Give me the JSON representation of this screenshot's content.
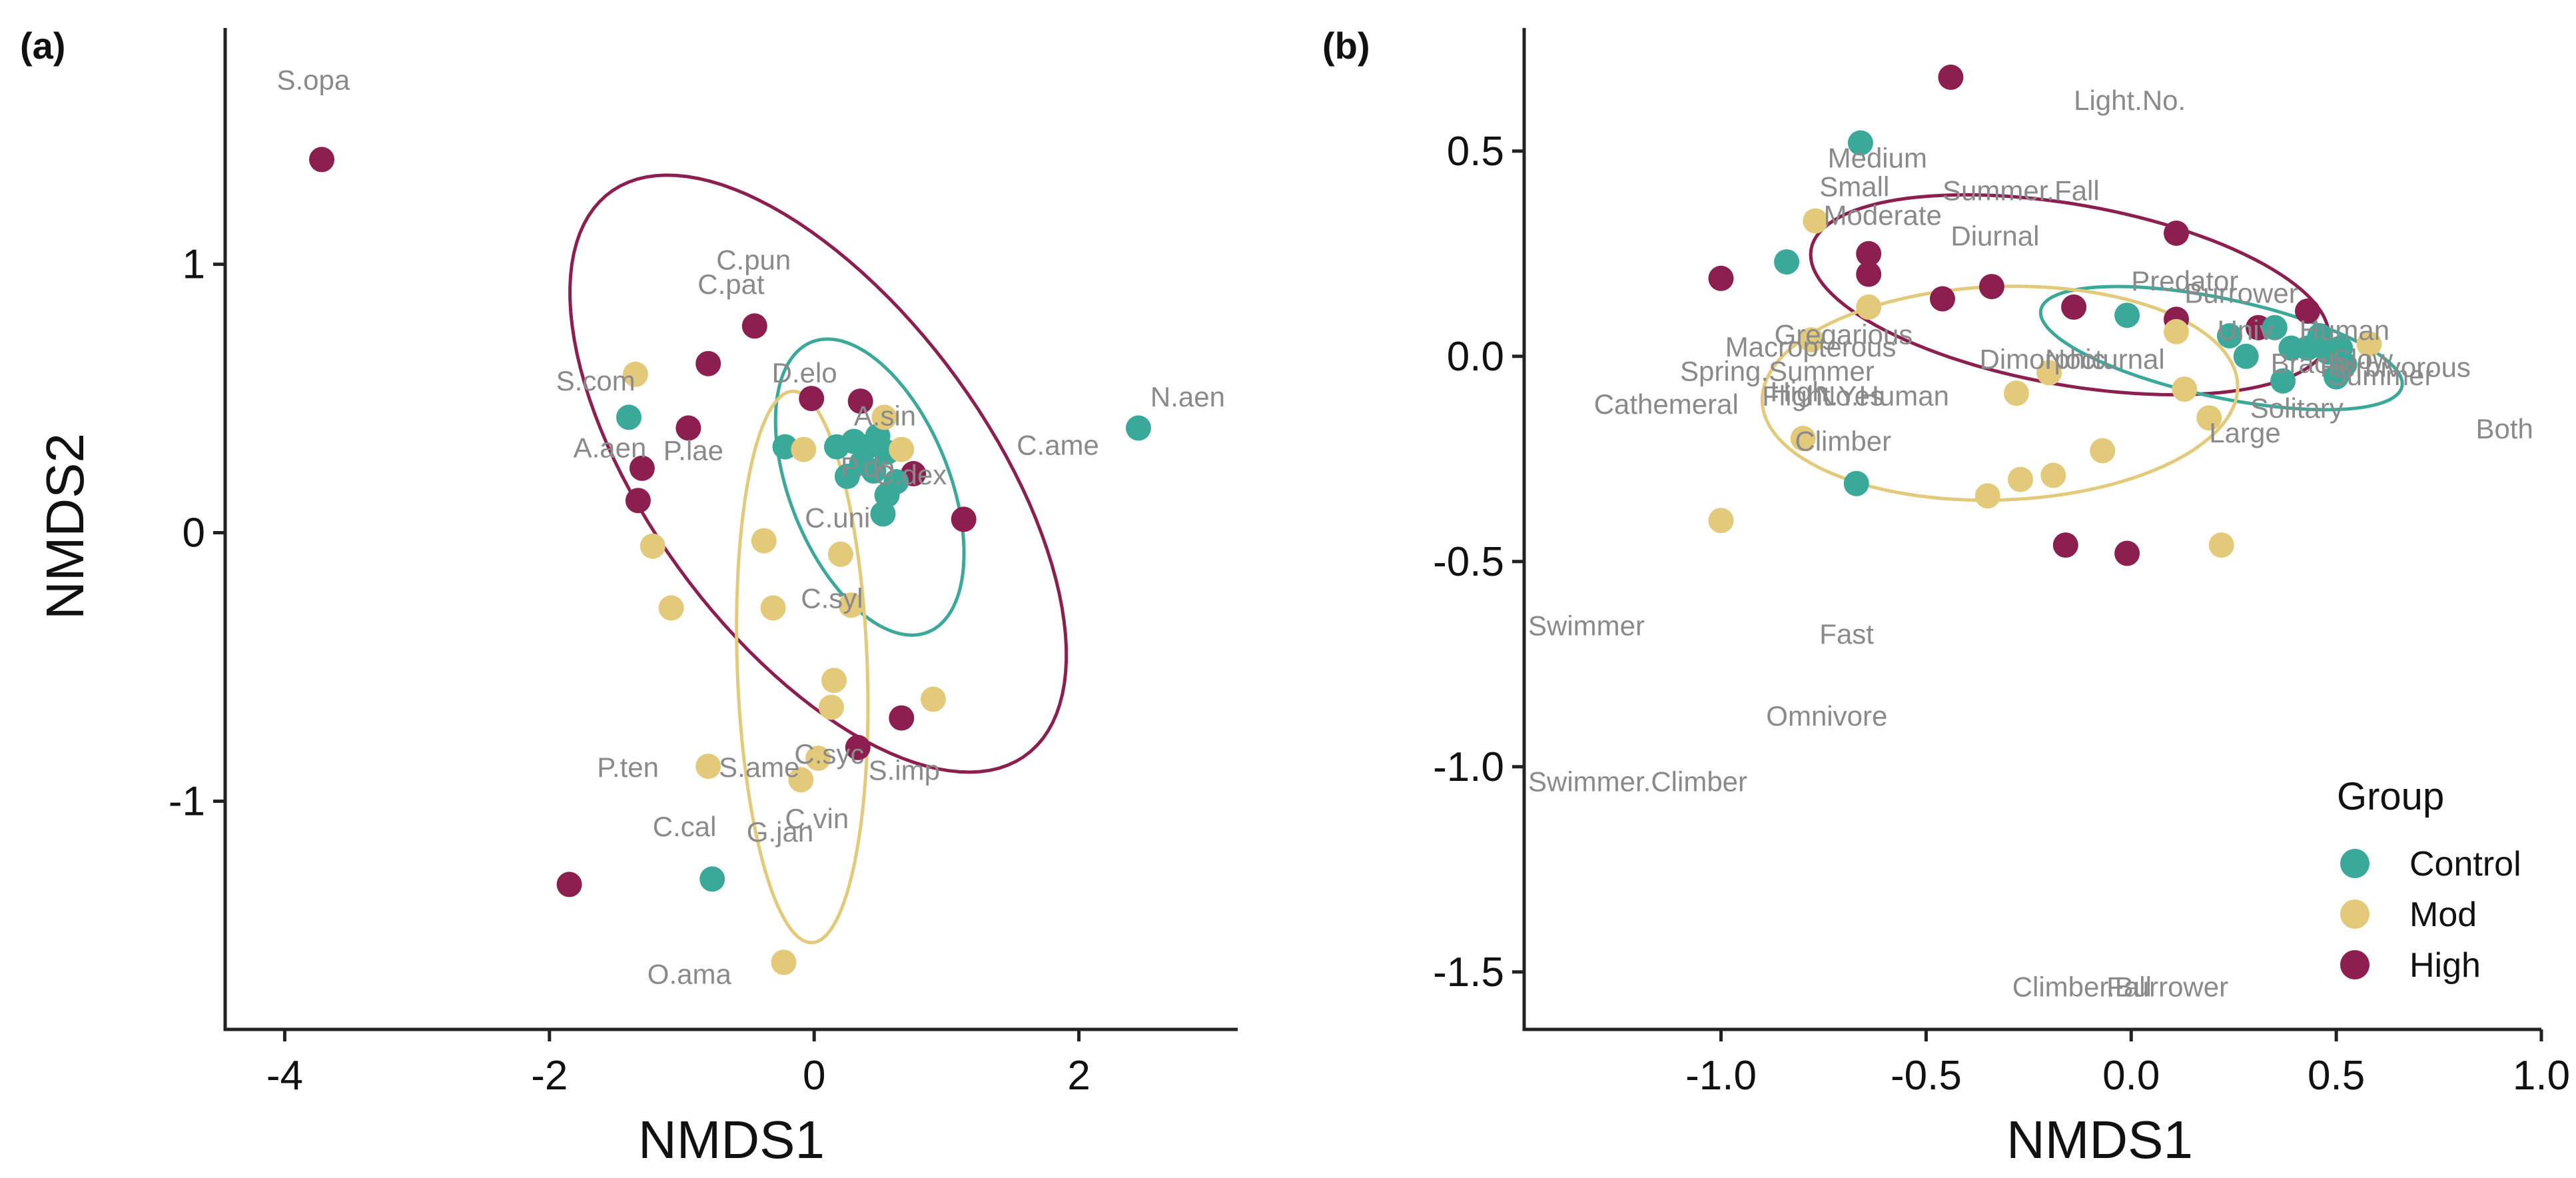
{
  "colors": {
    "Control": "#3ba99a",
    "Mod": "#e3ca7a",
    "High": "#8c1f50",
    "label": "#8a8a8a"
  },
  "legend": {
    "title": "Group",
    "items": [
      "Control",
      "Mod",
      "High"
    ]
  },
  "chart_data": [
    {
      "panel": "(a)",
      "type": "scatter",
      "xlabel": "NMDS1",
      "ylabel": "NMDS2",
      "xlim": [
        -4.45,
        3.2
      ],
      "ylim": [
        -1.85,
        1.88
      ],
      "xticks": [
        -4,
        -2,
        0,
        2
      ],
      "xtick_labels": [
        "-4",
        "-2",
        "0",
        "2"
      ],
      "yticks": [
        1,
        0,
        -1
      ],
      "ytick_labels": [
        "1",
        "0",
        "-1"
      ],
      "points": [
        {
          "x": -3.72,
          "y": 1.39,
          "g": "High"
        },
        {
          "x": -1.85,
          "y": -1.31,
          "g": "High"
        },
        {
          "x": -0.45,
          "y": 0.77,
          "g": "High"
        },
        {
          "x": -0.8,
          "y": 0.63,
          "g": "High"
        },
        {
          "x": -0.95,
          "y": 0.39,
          "g": "High"
        },
        {
          "x": -1.3,
          "y": 0.24,
          "g": "High"
        },
        {
          "x": -1.33,
          "y": 0.12,
          "g": "High"
        },
        {
          "x": -0.02,
          "y": 0.5,
          "g": "High"
        },
        {
          "x": 0.35,
          "y": 0.49,
          "g": "High"
        },
        {
          "x": 0.75,
          "y": 0.22,
          "g": "High"
        },
        {
          "x": 1.13,
          "y": 0.05,
          "g": "High"
        },
        {
          "x": 0.66,
          "y": -0.69,
          "g": "High"
        },
        {
          "x": 0.33,
          "y": -0.8,
          "g": "High"
        },
        {
          "x": -1.4,
          "y": 0.43,
          "g": "Control"
        },
        {
          "x": -0.22,
          "y": 0.32,
          "g": "Control"
        },
        {
          "x": 0.17,
          "y": 0.32,
          "g": "Control"
        },
        {
          "x": 0.3,
          "y": 0.34,
          "g": "Control"
        },
        {
          "x": 0.4,
          "y": 0.32,
          "g": "Control"
        },
        {
          "x": 0.48,
          "y": 0.36,
          "g": "Control"
        },
        {
          "x": 0.55,
          "y": 0.3,
          "g": "Control"
        },
        {
          "x": 0.36,
          "y": 0.26,
          "g": "Control"
        },
        {
          "x": 0.25,
          "y": 0.21,
          "g": "Control"
        },
        {
          "x": 0.45,
          "y": 0.23,
          "g": "Control"
        },
        {
          "x": 0.62,
          "y": 0.19,
          "g": "Control"
        },
        {
          "x": 0.55,
          "y": 0.14,
          "g": "Control"
        },
        {
          "x": 0.52,
          "y": 0.07,
          "g": "Control"
        },
        {
          "x": 2.45,
          "y": 0.39,
          "g": "Control"
        },
        {
          "x": -0.77,
          "y": -1.29,
          "g": "Control"
        },
        {
          "x": -1.35,
          "y": 0.59,
          "g": "Mod"
        },
        {
          "x": -1.22,
          "y": -0.05,
          "g": "Mod"
        },
        {
          "x": -1.08,
          "y": -0.28,
          "g": "Mod"
        },
        {
          "x": -0.08,
          "y": 0.31,
          "g": "Mod"
        },
        {
          "x": 0.53,
          "y": 0.43,
          "g": "Mod"
        },
        {
          "x": 0.66,
          "y": 0.31,
          "g": "Mod"
        },
        {
          "x": -0.38,
          "y": -0.03,
          "g": "Mod"
        },
        {
          "x": 0.2,
          "y": -0.08,
          "g": "Mod"
        },
        {
          "x": -0.31,
          "y": -0.28,
          "g": "Mod"
        },
        {
          "x": 0.28,
          "y": -0.27,
          "g": "Mod"
        },
        {
          "x": 0.15,
          "y": -0.55,
          "g": "Mod"
        },
        {
          "x": 0.13,
          "y": -0.65,
          "g": "Mod"
        },
        {
          "x": 0.9,
          "y": -0.62,
          "g": "Mod"
        },
        {
          "x": 0.03,
          "y": -0.84,
          "g": "Mod"
        },
        {
          "x": -0.8,
          "y": -0.87,
          "g": "Mod"
        },
        {
          "x": -0.1,
          "y": -0.92,
          "g": "Mod"
        },
        {
          "x": -0.23,
          "y": -1.6,
          "g": "Mod"
        }
      ],
      "ellipses": [
        {
          "g": "High",
          "cx": 0.03,
          "cy": 0.22,
          "rx": 2.02,
          "ry": 0.82,
          "angle_deg": -24
        },
        {
          "g": "Control",
          "cx": 0.42,
          "cy": 0.17,
          "rx": 0.78,
          "ry": 0.45,
          "angle_deg": -30
        },
        {
          "g": "Mod",
          "cx": -0.09,
          "cy": -0.5,
          "rx": 1.03,
          "ry": 0.49,
          "angle_deg": -85
        }
      ],
      "labels": [
        {
          "t": "S.opa",
          "x": -4.06,
          "y": 1.65
        },
        {
          "t": "C.pun",
          "x": -0.74,
          "y": 0.98
        },
        {
          "t": "C.pat",
          "x": -0.88,
          "y": 0.89
        },
        {
          "t": "S.com",
          "x": -1.95,
          "y": 0.53
        },
        {
          "t": "D.elo",
          "x": -0.32,
          "y": 0.56
        },
        {
          "t": "A.sin",
          "x": 0.3,
          "y": 0.4
        },
        {
          "t": "A.aen",
          "x": -1.82,
          "y": 0.28
        },
        {
          "t": "P.lae",
          "x": -1.14,
          "y": 0.27
        },
        {
          "t": "C.ame",
          "x": 1.53,
          "y": 0.29
        },
        {
          "t": "N.aen",
          "x": 2.54,
          "y": 0.47
        },
        {
          "t": "P.do",
          "x": 0.2,
          "y": 0.21
        },
        {
          "t": "C.dex",
          "x": 0.45,
          "y": 0.18
        },
        {
          "t": "C.uni",
          "x": -0.07,
          "y": 0.02
        },
        {
          "t": "C.syl",
          "x": -0.1,
          "y": -0.28
        },
        {
          "t": "P.ten",
          "x": -1.64,
          "y": -0.91
        },
        {
          "t": "S.ame",
          "x": -0.72,
          "y": -0.91
        },
        {
          "t": "C.syc",
          "x": -0.15,
          "y": -0.86
        },
        {
          "t": "S.imp",
          "x": 0.41,
          "y": -0.92
        },
        {
          "t": "C.cal",
          "x": -1.22,
          "y": -1.13
        },
        {
          "t": "G.jan",
          "x": -0.51,
          "y": -1.15
        },
        {
          "t": "C.vin",
          "x": -0.22,
          "y": -1.1
        },
        {
          "t": "O.ama",
          "x": -1.26,
          "y": -1.68
        }
      ]
    },
    {
      "panel": "(b)",
      "type": "scatter",
      "xlabel": "NMDS1",
      "ylabel": "",
      "xlim": [
        -1.48,
        1.0
      ],
      "ylim": [
        -1.64,
        0.8
      ],
      "xticks": [
        -1.0,
        -0.5,
        0.0,
        0.5,
        1.0
      ],
      "xtick_labels": [
        "-1.0",
        "-0.5",
        "0.0",
        "0.5",
        "1.0"
      ],
      "yticks": [
        0.5,
        0.0,
        -0.5,
        -1.0,
        -1.5
      ],
      "ytick_labels": [
        "0.5",
        "0.0",
        "-0.5",
        "-1.0",
        "-1.5"
      ],
      "points": [
        {
          "x": -0.44,
          "y": 0.68,
          "g": "High"
        },
        {
          "x": -1.0,
          "y": 0.19,
          "g": "High"
        },
        {
          "x": -0.64,
          "y": 0.25,
          "g": "High"
        },
        {
          "x": -0.64,
          "y": 0.2,
          "g": "High"
        },
        {
          "x": -0.46,
          "y": 0.14,
          "g": "High"
        },
        {
          "x": -0.34,
          "y": 0.17,
          "g": "High"
        },
        {
          "x": -0.14,
          "y": 0.12,
          "g": "High"
        },
        {
          "x": 0.11,
          "y": 0.3,
          "g": "High"
        },
        {
          "x": 0.11,
          "y": 0.09,
          "g": "High"
        },
        {
          "x": 0.31,
          "y": 0.07,
          "g": "High"
        },
        {
          "x": 0.43,
          "y": 0.11,
          "g": "High"
        },
        {
          "x": -0.16,
          "y": -0.46,
          "g": "High"
        },
        {
          "x": -0.01,
          "y": -0.48,
          "g": "High"
        },
        {
          "x": -0.66,
          "y": 0.52,
          "g": "Control"
        },
        {
          "x": -0.84,
          "y": 0.23,
          "g": "Control"
        },
        {
          "x": -0.01,
          "y": 0.1,
          "g": "Control"
        },
        {
          "x": 0.24,
          "y": 0.05,
          "g": "Control"
        },
        {
          "x": 0.35,
          "y": 0.07,
          "g": "Control"
        },
        {
          "x": 0.39,
          "y": 0.02,
          "g": "Control"
        },
        {
          "x": 0.43,
          "y": 0.02,
          "g": "Control"
        },
        {
          "x": 0.46,
          "y": 0.05,
          "g": "Control"
        },
        {
          "x": 0.48,
          "y": 0.01,
          "g": "Control"
        },
        {
          "x": 0.51,
          "y": 0.02,
          "g": "Control"
        },
        {
          "x": 0.28,
          "y": 0.0,
          "g": "Control"
        },
        {
          "x": 0.52,
          "y": -0.02,
          "g": "Control"
        },
        {
          "x": 0.37,
          "y": -0.06,
          "g": "Control"
        },
        {
          "x": 0.5,
          "y": -0.05,
          "g": "Control"
        },
        {
          "x": -0.67,
          "y": -0.31,
          "g": "Control"
        },
        {
          "x": -0.77,
          "y": 0.33,
          "g": "Mod"
        },
        {
          "x": -0.78,
          "y": 0.04,
          "g": "Mod"
        },
        {
          "x": -0.64,
          "y": 0.12,
          "g": "Mod"
        },
        {
          "x": 0.11,
          "y": 0.06,
          "g": "Mod"
        },
        {
          "x": -0.28,
          "y": -0.09,
          "g": "Mod"
        },
        {
          "x": -0.2,
          "y": -0.04,
          "g": "Mod"
        },
        {
          "x": 0.13,
          "y": -0.08,
          "g": "Mod"
        },
        {
          "x": 0.58,
          "y": 0.03,
          "g": "Mod"
        },
        {
          "x": -0.8,
          "y": -0.2,
          "g": "Mod"
        },
        {
          "x": -0.07,
          "y": -0.23,
          "g": "Mod"
        },
        {
          "x": -0.19,
          "y": -0.29,
          "g": "Mod"
        },
        {
          "x": -0.27,
          "y": -0.3,
          "g": "Mod"
        },
        {
          "x": -0.35,
          "y": -0.34,
          "g": "Mod"
        },
        {
          "x": 0.19,
          "y": -0.15,
          "g": "Mod"
        },
        {
          "x": 0.22,
          "y": -0.46,
          "g": "Mod"
        },
        {
          "x": -1.0,
          "y": -0.4,
          "g": "Mod"
        }
      ],
      "ellipses": [
        {
          "g": "High",
          "cx": -0.15,
          "cy": 0.15,
          "rx": 0.64,
          "ry": 0.22,
          "angle_deg": -10
        },
        {
          "g": "Control",
          "cx": 0.22,
          "cy": 0.02,
          "rx": 0.45,
          "ry": 0.12,
          "angle_deg": -12
        },
        {
          "g": "Mod",
          "cx": -0.32,
          "cy": -0.09,
          "rx": 0.58,
          "ry": 0.26,
          "angle_deg": 2
        }
      ],
      "labels": [
        {
          "t": "Light.No.",
          "x": -0.14,
          "y": 0.6
        },
        {
          "t": "Medium",
          "x": -0.74,
          "y": 0.46
        },
        {
          "t": "Small",
          "x": -0.76,
          "y": 0.39
        },
        {
          "t": "Summer.Fall",
          "x": -0.46,
          "y": 0.38
        },
        {
          "t": "Moderate",
          "x": -0.75,
          "y": 0.32
        },
        {
          "t": "Diurnal",
          "x": -0.44,
          "y": 0.27
        },
        {
          "t": "Predator",
          "x": 0.0,
          "y": 0.16
        },
        {
          "t": "Burrower",
          "x": 0.13,
          "y": 0.13
        },
        {
          "t": "Gregarious",
          "x": -0.87,
          "y": 0.03
        },
        {
          "t": "Macropterous",
          "x": -0.99,
          "y": 0.0
        },
        {
          "t": "Univ.",
          "x": 0.21,
          "y": 0.04
        },
        {
          "t": "Human",
          "x": 0.41,
          "y": 0.04
        },
        {
          "t": "Dimorphic",
          "x": -0.37,
          "y": -0.03
        },
        {
          "t": "Nocturnal",
          "x": -0.21,
          "y": -0.03
        },
        {
          "t": "Brach.",
          "x": 0.34,
          "y": -0.04
        },
        {
          "t": "Slow",
          "x": 0.49,
          "y": -0.03
        },
        {
          "t": "Herbivorous",
          "x": 0.46,
          "y": -0.05
        },
        {
          "t": "Summer",
          "x": 0.48,
          "y": -0.07
        },
        {
          "t": "Spring.Summer",
          "x": -1.1,
          "y": -0.06
        },
        {
          "t": "High",
          "x": -0.88,
          "y": -0.11
        },
        {
          "t": "Flight.Yes",
          "x": -0.9,
          "y": -0.12
        },
        {
          "t": "No.Human",
          "x": -0.77,
          "y": -0.12
        },
        {
          "t": "Cathemeral",
          "x": -1.31,
          "y": -0.14
        },
        {
          "t": "Solitary",
          "x": 0.29,
          "y": -0.15
        },
        {
          "t": "Large",
          "x": 0.19,
          "y": -0.21
        },
        {
          "t": "Both",
          "x": 0.84,
          "y": -0.2
        },
        {
          "t": "Climber",
          "x": -0.82,
          "y": -0.23
        },
        {
          "t": "Swimmer",
          "x": -1.52,
          "y": -0.68
        },
        {
          "t": "Fast",
          "x": -0.76,
          "y": -0.7
        },
        {
          "t": "Omnivore",
          "x": -0.89,
          "y": -0.9
        },
        {
          "t": "Swimmer.Climber",
          "x": -1.48,
          "y": -1.06
        },
        {
          "t": "Climber.Burrower",
          "x": -0.29,
          "y": -1.56
        },
        {
          "t": "Fall",
          "x": -0.06,
          "y": -1.56
        }
      ]
    }
  ]
}
